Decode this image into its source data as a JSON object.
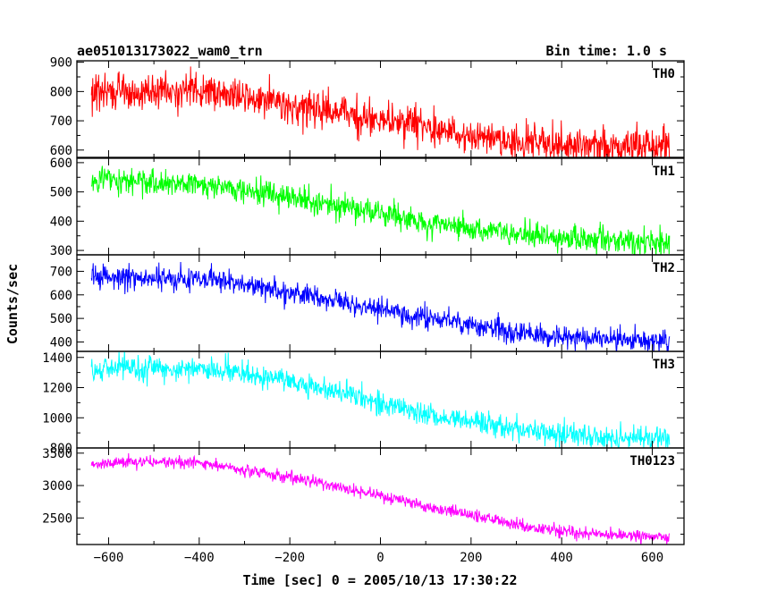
{
  "chart_data": {
    "type": "line",
    "title": "ae051013173022_wam0_trn",
    "bin_time": "Bin time: 1.0 s",
    "xlabel": "Time [sec] 0 = 2005/10/13 17:30:22",
    "ylabel": "Counts/sec",
    "xlim": [
      -670,
      670
    ],
    "x_ticks": [
      -600,
      -400,
      -200,
      0,
      200,
      400,
      600
    ],
    "x_tick_labels": [
      "−600",
      "−400",
      "−200",
      "0",
      "200",
      "400",
      "600"
    ],
    "data_x_range": [
      -638,
      638
    ],
    "bin_seconds": 1.0,
    "panels": [
      {
        "name": "TH0",
        "color": "#ff0000",
        "ylim": [
          575,
          905
        ],
        "y_ticks": [
          600,
          700,
          800,
          900
        ],
        "y_tick_labels": [
          "600",
          "700",
          "800",
          "900"
        ],
        "trend_x": [
          -640,
          -500,
          -400,
          -300,
          -200,
          -100,
          0,
          100,
          200,
          300,
          400,
          500,
          640
        ],
        "trend_y": [
          795,
          800,
          800,
          785,
          755,
          730,
          700,
          680,
          650,
          630,
          620,
          615,
          610
        ],
        "noise_sd": 30
      },
      {
        "name": "TH1",
        "color": "#00ff00",
        "ylim": [
          285,
          615
        ],
        "y_ticks": [
          300,
          400,
          500,
          600
        ],
        "y_tick_labels": [
          "300",
          "400",
          "500",
          "600"
        ],
        "trend_x": [
          -640,
          -500,
          -400,
          -300,
          -200,
          -100,
          0,
          100,
          200,
          300,
          400,
          500,
          640
        ],
        "trend_y": [
          540,
          535,
          525,
          505,
          480,
          455,
          425,
          395,
          375,
          355,
          345,
          335,
          325
        ],
        "noise_sd": 22
      },
      {
        "name": "TH2",
        "color": "#0000ff",
        "ylim": [
          360,
          770
        ],
        "y_ticks": [
          400,
          500,
          600,
          700
        ],
        "y_tick_labels": [
          "400",
          "500",
          "600",
          "700"
        ],
        "trend_x": [
          -640,
          -500,
          -400,
          -300,
          -200,
          -100,
          0,
          100,
          200,
          300,
          400,
          500,
          640
        ],
        "trend_y": [
          675,
          680,
          670,
          645,
          610,
          575,
          540,
          500,
          470,
          440,
          420,
          410,
          400
        ],
        "noise_sd": 24
      },
      {
        "name": "TH3",
        "color": "#00ffff",
        "ylim": [
          800,
          1440
        ],
        "y_ticks": [
          800,
          1000,
          1200,
          1400
        ],
        "y_tick_labels": [
          "800",
          "1000",
          "1200",
          "1400"
        ],
        "trend_x": [
          -640,
          -500,
          -400,
          -300,
          -200,
          -100,
          0,
          100,
          200,
          300,
          400,
          500,
          640
        ],
        "trend_y": [
          1315,
          1330,
          1325,
          1295,
          1245,
          1170,
          1100,
          1025,
          970,
          925,
          890,
          870,
          860
        ],
        "noise_sd": 38
      },
      {
        "name": "TH0123",
        "color": "#ff00ff",
        "ylim": [
          2090,
          3580
        ],
        "y_ticks": [
          2500,
          3000,
          3500
        ],
        "y_tick_labels": [
          "2500",
          "3000",
          "3500"
        ],
        "trend_x": [
          -640,
          -500,
          -400,
          -300,
          -200,
          -100,
          0,
          100,
          200,
          300,
          400,
          500,
          640
        ],
        "trend_y": [
          3330,
          3370,
          3350,
          3240,
          3130,
          2990,
          2840,
          2680,
          2540,
          2390,
          2290,
          2230,
          2210
        ],
        "noise_sd": 45
      }
    ],
    "grid": false,
    "legend": "none"
  }
}
